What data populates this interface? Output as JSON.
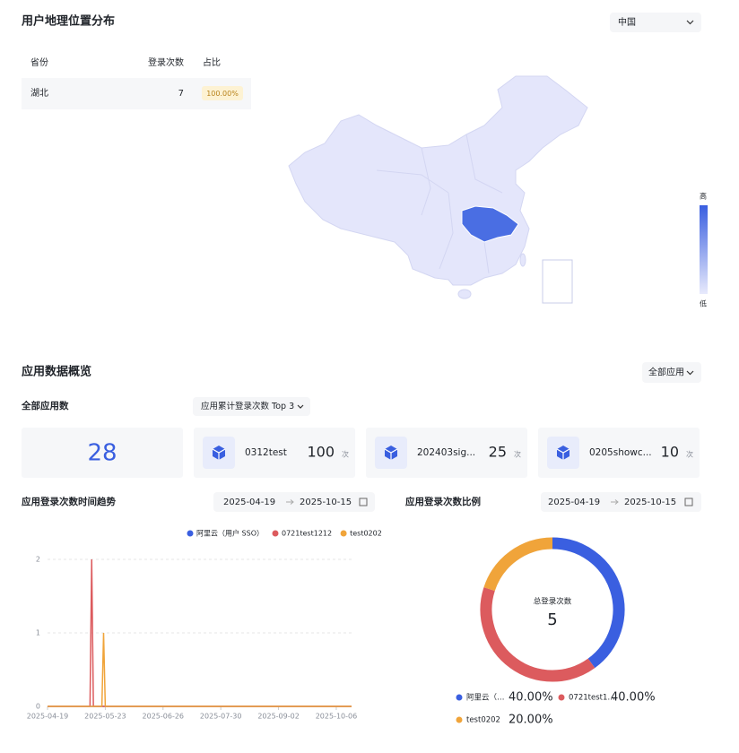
{
  "geo": {
    "title": "用户地理位置分布",
    "region": "中国",
    "table": {
      "headers": [
        "省份",
        "登录次数",
        "占比"
      ],
      "rows": [
        [
          "湖北",
          7,
          "100.00%"
        ]
      ]
    },
    "legend": {
      "high": "高",
      "low": "低"
    }
  },
  "overview": {
    "title": "应用数据概览",
    "app_filter": "全部应用",
    "total_label": "全部应用数",
    "total": 28,
    "rank_filter": "应用累计登录次数 Top 3",
    "unit": "次",
    "cards": [
      {
        "name": "0312test",
        "value": 100
      },
      {
        "name": "202403sig...",
        "value": 25
      },
      {
        "name": "0205showc...",
        "value": 10
      }
    ]
  },
  "chart_data": [
    {
      "type": "line",
      "title": "应用登录次数时间趋势",
      "date_range": [
        "2025-04-19",
        "2025-10-15"
      ],
      "x": [
        "2025-04-19",
        "2025-05-14",
        "2025-05-15",
        "2025-05-16",
        "2025-05-21",
        "2025-05-22",
        "2025-05-23",
        "2025-10-15"
      ],
      "series": [
        {
          "name": "阿里云（用户 SSO）",
          "color": "#3a5fe0",
          "values": [
            0,
            0,
            0,
            0,
            0,
            0,
            0,
            0
          ]
        },
        {
          "name": "0721test1212",
          "color": "#dc5b5e",
          "values": [
            0,
            0,
            2,
            0,
            0,
            0,
            0,
            0
          ]
        },
        {
          "name": "test0202",
          "color": "#f0a43a",
          "values": [
            0,
            0,
            0,
            0,
            0,
            1,
            0,
            0
          ]
        }
      ],
      "xlim": [
        "2025-04-19",
        "2025-10-15"
      ],
      "xticks": [
        "2025-04-19",
        "2025-05-23",
        "2025-06-26",
        "2025-07-30",
        "2025-09-02",
        "2025-10-06"
      ],
      "ylim": [
        0,
        2
      ],
      "yticks": [
        0,
        1,
        2
      ],
      "grid": true,
      "legend": "top"
    },
    {
      "type": "donut",
      "title": "应用登录次数比例",
      "date_range": [
        "2025-04-19",
        "2025-10-15"
      ],
      "center_label": "总登录次数",
      "total": 5,
      "categories": [
        "阿里云（…",
        "0721test1…",
        "test0202"
      ],
      "values": [
        40,
        40,
        20
      ],
      "value_labels": [
        "40.00%",
        "40.00%",
        "20.00%"
      ],
      "colors": [
        "#3a5fe0",
        "#dc5b5e",
        "#f0a43a"
      ]
    }
  ]
}
